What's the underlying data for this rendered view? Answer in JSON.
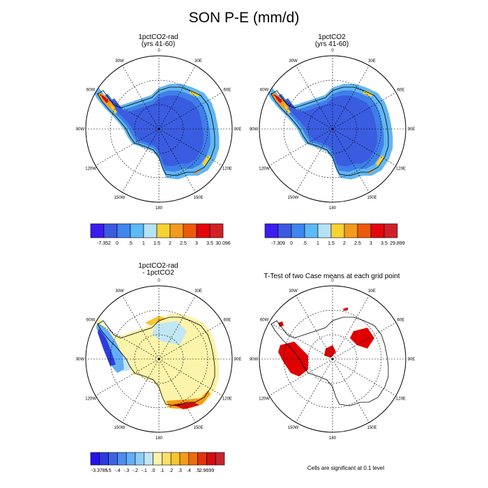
{
  "title": "SON P-E (mm/d)",
  "lon_labels": [
    "0",
    "30E",
    "60E",
    "90E",
    "120E",
    "150E",
    "180",
    "150W",
    "120W",
    "90W",
    "60W",
    "30W"
  ],
  "panels": [
    {
      "title_line1": "1pctCO2-rad",
      "title_line2": "(yrs 41-60)"
    },
    {
      "title_line1": "1pctCO2",
      "title_line2": "(yrs 41-60)"
    },
    {
      "title_line1": "1pctCO2-rad",
      "title_line2": "- 1pctCO2"
    },
    {
      "title_line1": "T-Test of two Case means at each grid point",
      "title_line2": ""
    }
  ],
  "footnote": "Cells are significant at 0.1 level",
  "colorbars": [
    {
      "labels": [
        "-7.352",
        "0",
        ".5",
        "1",
        "1.5",
        "2",
        "2.5",
        "3",
        "3.5",
        "30.096"
      ],
      "colors": [
        "#3a1cf0",
        "#3b5ae0",
        "#3f86ee",
        "#5cbaf4",
        "#b5e2f4",
        "#f8d232",
        "#f49a1c",
        "#ee5a0c",
        "#e4060c",
        "#d22028"
      ]
    },
    {
      "labels": [
        "-7.309",
        "0",
        ".5",
        "1",
        "1.5",
        "2",
        "2.5",
        "3",
        "3.5",
        "29.899"
      ],
      "colors": [
        "#3a1cf0",
        "#3b5ae0",
        "#3f86ee",
        "#5cbaf4",
        "#b5e2f4",
        "#f8d232",
        "#f49a1c",
        "#ee5a0c",
        "#e4060c",
        "#d22028"
      ]
    },
    {
      "labels": [
        "-3.3785",
        "-.5",
        "-.4",
        "-.3",
        "-.2",
        "-.1",
        ".0",
        ".1",
        ".2",
        ".3",
        ".4",
        ".5",
        "2.9699"
      ],
      "colors": [
        "#2612ee",
        "#2e3cde",
        "#3a64e6",
        "#4c8cf0",
        "#62aef6",
        "#8ccdf6",
        "#c2e6f4",
        "#fcf4aa",
        "#fbdf6a",
        "#f8c430",
        "#f49c18",
        "#ee6c0c",
        "#e4320c",
        "#d40c10",
        "#c4262e"
      ]
    }
  ],
  "chart_data": [
    {
      "type": "heatmap",
      "title": "1pctCO2-rad (yrs 41-60)",
      "projection": "south-polar-stereographic",
      "colorbar_levels": [
        0,
        0.5,
        1,
        1.5,
        2,
        2.5,
        3,
        3.5
      ],
      "colorbar_min": -7.352,
      "colorbar_max": 30.096,
      "units": "mm/d"
    },
    {
      "type": "heatmap",
      "title": "1pctCO2 (yrs 41-60)",
      "projection": "south-polar-stereographic",
      "colorbar_levels": [
        0,
        0.5,
        1,
        1.5,
        2,
        2.5,
        3,
        3.5
      ],
      "colorbar_min": -7.309,
      "colorbar_max": 29.899,
      "units": "mm/d"
    },
    {
      "type": "heatmap",
      "title": "1pctCO2-rad - 1pctCO2",
      "projection": "south-polar-stereographic",
      "colorbar_levels": [
        -0.5,
        -0.4,
        -0.3,
        -0.2,
        -0.1,
        0.0,
        0.1,
        0.2,
        0.3,
        0.4,
        0.5
      ],
      "colorbar_min": -3.3785,
      "colorbar_max": 2.9699,
      "units": "mm/d"
    },
    {
      "type": "heatmap",
      "title": "T-Test of two Case means at each grid point",
      "projection": "south-polar-stereographic",
      "significance_level": 0.1,
      "marker_color": "#e00000"
    }
  ]
}
